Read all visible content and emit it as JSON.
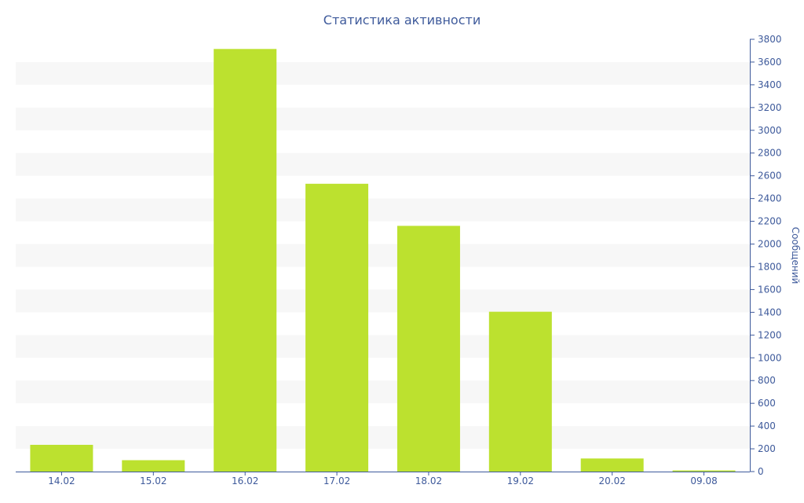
{
  "chart_data": {
    "type": "bar",
    "title": "Статистика активности",
    "xlabel": "",
    "ylabel": "Сообщений",
    "categories": [
      "14.02",
      "15.02",
      "16.02",
      "17.02",
      "18.02",
      "19.02",
      "20.02",
      "09.08"
    ],
    "values": [
      235,
      100,
      3715,
      2530,
      2160,
      1405,
      115,
      10
    ],
    "ylim": [
      0,
      3800
    ],
    "yticks": [
      0,
      200,
      400,
      600,
      800,
      1000,
      1200,
      1400,
      1600,
      1800,
      2000,
      2200,
      2400,
      2600,
      2800,
      3000,
      3200,
      3400,
      3600,
      3800
    ],
    "y_axis_side": "right",
    "grid": "alternating horizontal bands",
    "legend": "none"
  },
  "colors": {
    "bar": "#bce12f",
    "text": "#3e5a9b",
    "band": "#f7f7f7",
    "axis": "#3e5a9b"
  }
}
